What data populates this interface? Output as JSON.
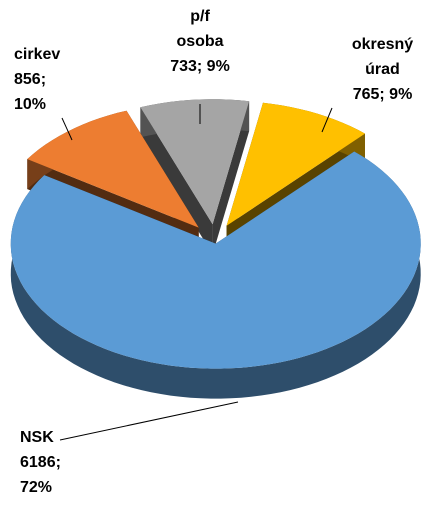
{
  "chart_data": {
    "type": "pie3d",
    "categories": [
      "NSK",
      "cirkev",
      "p/f osoba",
      "okresný úrad"
    ],
    "values": [
      6186,
      856,
      733,
      765
    ],
    "value_labels": [
      "6186; 72%",
      "856; 10%",
      "733; 9%",
      "765; 9%"
    ],
    "colors": [
      "#5b9bd5",
      "#ed7d31",
      "#a5a5a5",
      "#ffc000"
    ]
  }
}
